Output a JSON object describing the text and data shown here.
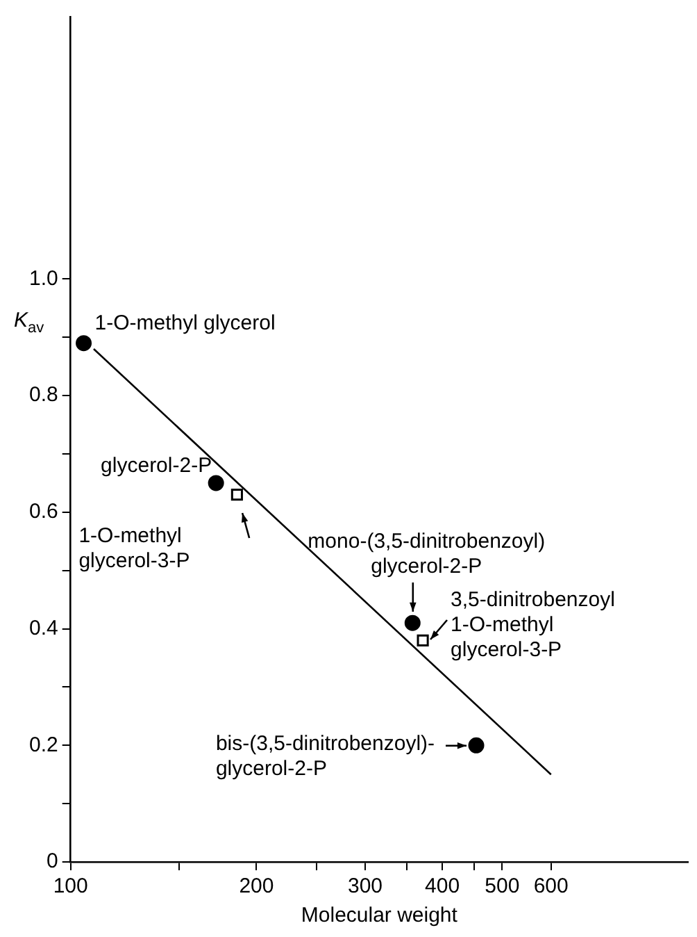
{
  "chart_data": {
    "type": "scatter",
    "xlabel": "Molecular weight",
    "ylabel": "K$_{av}$",
    "log": "x",
    "xlim": [
      100,
      1000
    ],
    "xticks": [
      100,
      {
        "value": 150,
        "label": null
      },
      200,
      {
        "value": 250,
        "label": null
      },
      300,
      {
        "value": 350,
        "label": null
      },
      400,
      {
        "value": 450,
        "label": null
      },
      500,
      600
    ],
    "ylim": [
      0,
      1.45
    ],
    "yticks": [
      0,
      {
        "value": 0.1,
        "label": null
      },
      0.2,
      {
        "value": 0.3,
        "label": null
      },
      0.4,
      {
        "value": 0.5,
        "label": null
      },
      0.6,
      {
        "value": 0.7,
        "label": null
      },
      0.8,
      {
        "value": 0.9,
        "label": null
      },
      {
        "value": 1,
        "label": "1.0"
      }
    ],
    "grid": false,
    "legend": false,
    "series": [
      {
        "type": "scatter",
        "marker": "circle",
        "color": "#000000",
        "x": [
          105,
          172,
          358,
          454
        ],
        "values": [
          0.89,
          0.65,
          0.41,
          0.2
        ]
      },
      {
        "type": "scatter",
        "marker": "square",
        "color": "#000000",
        "x": [
          186,
          372
        ],
        "values": [
          0.63,
          0.38
        ]
      },
      {
        "type": "line",
        "marker": "none",
        "color": "#000000",
        "x": [
          109,
          600
        ],
        "values": [
          0.88,
          0.15
        ]
      }
    ],
    "annotations": [
      {
        "text": "1-O-methyl glycerol",
        "x": 105,
        "y": 0.89
      },
      {
        "text": "glycerol-2-P",
        "x": 172,
        "y": 0.65
      },
      {
        "text": "1-O-methyl\nglycerol-3-P",
        "x": 186,
        "y": 0.63
      },
      {
        "text": "mono-(3,5-dinitrobenzoyl)\nglycerol-2-P",
        "x": 358,
        "y": 0.41
      },
      {
        "text": "3,5-dinitrobenzoyl\n1-O-methyl\nglycerol-3-P",
        "x": 372,
        "y": 0.38
      },
      {
        "text": "bis-(3,5-dinitrobenzoyl)-\nglycerol-2-P",
        "x": 454,
        "y": 0.2
      }
    ]
  }
}
